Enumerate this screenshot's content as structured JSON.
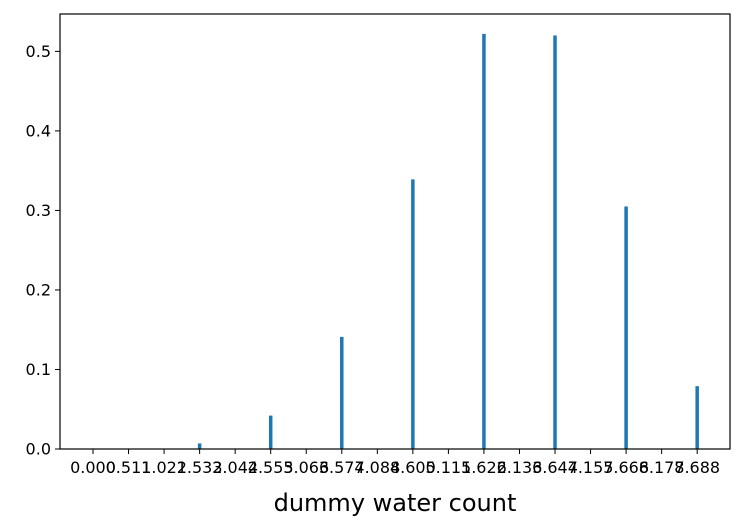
{
  "chart_data": {
    "type": "bar",
    "xlabel": "dummy water count",
    "ylabel": "",
    "title": "",
    "ylim": [
      0,
      0.547
    ],
    "yticks": [
      "0.0",
      "0.1",
      "0.2",
      "0.3",
      "0.4",
      "0.5"
    ],
    "xtick_labels": [
      "0.000",
      "0.511",
      "1.022",
      "1.533",
      "2.044",
      "2.555",
      "3.066",
      "3.577",
      "4.088",
      "4.600",
      "5.111",
      "5.622",
      "6.133",
      "6.644",
      "7.155",
      "7.666",
      "8.177",
      "8.688"
    ],
    "values": [
      0.0,
      0.0,
      0.0,
      0.007,
      0.0,
      0.042,
      0.0,
      0.141,
      0.0,
      0.339,
      0.0,
      0.522,
      0.0,
      0.52,
      0.0,
      0.305,
      0.0,
      0.079
    ],
    "bar_color": "#1f77b4",
    "grid": false,
    "legend": "none"
  }
}
